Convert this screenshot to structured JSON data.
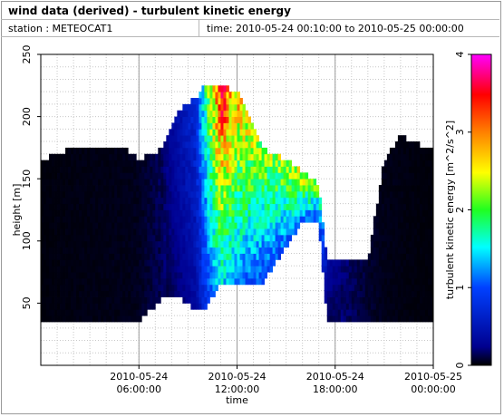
{
  "window": {
    "title": "wind data (derived) - turbulent kinetic energy",
    "station": "station : METEOCAT1",
    "time_range": "time: 2010-05-24 00:10:00 to 2010-05-25 00:00:00"
  },
  "colors": {
    "frame_border": "#9a9a9a",
    "grid": "#c8c8c8",
    "axis": "#000000"
  },
  "chart_data": {
    "type": "heatmap",
    "xlabel": "time",
    "ylabel": "height [m]",
    "colorbar_label": "turbulent kinetic energy [m^2/s^2]",
    "x_range_hours": [
      0,
      24
    ],
    "ylim": [
      0,
      250
    ],
    "clim": [
      0,
      4
    ],
    "colormap": "jet",
    "x_ticks": [
      {
        "hour": 6,
        "line1": "2010-05-24",
        "line2": "06:00:00"
      },
      {
        "hour": 12,
        "line1": "2010-05-24",
        "line2": "12:00:00"
      },
      {
        "hour": 18,
        "line1": "2010-05-24",
        "line2": "18:00:00"
      },
      {
        "hour": 24,
        "line1": "2010-05-25",
        "line2": "00:00:00"
      }
    ],
    "y_ticks": [
      50,
      100,
      150,
      200,
      250
    ],
    "colorbar_ticks": [
      0,
      1,
      2,
      3,
      4
    ],
    "data_extent": {
      "time_hours": [
        0,
        24
      ],
      "height_m": [
        35,
        225
      ],
      "missing_after_hour": 24
    },
    "tke_profile_by_time": [
      {
        "hour": 0.0,
        "bottom_m": 35,
        "top_m": 165,
        "tke": 0.02
      },
      {
        "hour": 2.0,
        "bottom_m": 35,
        "top_m": 175,
        "tke": 0.03
      },
      {
        "hour": 5.0,
        "bottom_m": 35,
        "top_m": 175,
        "tke": 0.04
      },
      {
        "hour": 6.0,
        "bottom_m": 35,
        "top_m": 165,
        "tke": 0.05
      },
      {
        "hour": 7.5,
        "bottom_m": 55,
        "top_m": 175,
        "tke": 0.15
      },
      {
        "hour": 8.5,
        "bottom_m": 55,
        "top_m": 205,
        "tke": 0.35
      },
      {
        "hour": 9.5,
        "bottom_m": 45,
        "top_m": 215,
        "tke": 0.6
      },
      {
        "hour": 10.0,
        "bottom_m": 45,
        "top_m": 225,
        "tke": 1.3
      },
      {
        "hour": 11.0,
        "bottom_m": 65,
        "top_m": 225,
        "tke": 2.6
      },
      {
        "hour": 12.0,
        "bottom_m": 65,
        "top_m": 220,
        "tke": 2.1
      },
      {
        "hour": 13.5,
        "bottom_m": 65,
        "top_m": 175,
        "tke": 1.7
      },
      {
        "hour": 15.0,
        "bottom_m": 95,
        "top_m": 165,
        "tke": 1.8
      },
      {
        "hour": 16.0,
        "bottom_m": 115,
        "top_m": 155,
        "tke": 1.9
      },
      {
        "hour": 17.0,
        "bottom_m": 115,
        "top_m": 145,
        "tke": 1.6
      },
      {
        "hour": 17.5,
        "bottom_m": 35,
        "top_m": 85,
        "tke": 0.25
      },
      {
        "hour": 19.0,
        "bottom_m": 35,
        "top_m": 85,
        "tke": 0.15
      },
      {
        "hour": 20.0,
        "bottom_m": 35,
        "top_m": 85,
        "tke": 0.08
      },
      {
        "hour": 21.0,
        "bottom_m": 35,
        "top_m": 165,
        "tke": 0.04
      },
      {
        "hour": 22.0,
        "bottom_m": 35,
        "top_m": 185,
        "tke": 0.03
      },
      {
        "hour": 23.5,
        "bottom_m": 35,
        "top_m": 175,
        "tke": 0.02
      }
    ]
  }
}
